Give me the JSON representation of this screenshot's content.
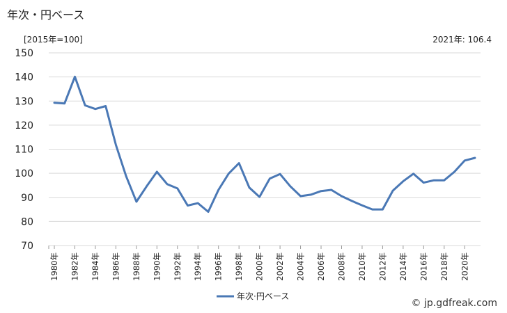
{
  "header": {
    "title": "年次・円ベース",
    "unit_label": "[2015年=100]",
    "latest_label": "2021年: 106.4"
  },
  "credit": "© jp.gdfreak.com",
  "colors": {
    "line": "#4a78b5",
    "grid": "#d9d9d9"
  },
  "chart_data": {
    "type": "line",
    "ylim": [
      70,
      150
    ],
    "yticks": [
      70,
      80,
      90,
      100,
      110,
      120,
      130,
      140,
      150
    ],
    "grid": true,
    "legend_position": "bottom-center",
    "x": [
      1980,
      1981,
      1982,
      1983,
      1984,
      1985,
      1986,
      1987,
      1988,
      1989,
      1990,
      1991,
      1992,
      1993,
      1994,
      1995,
      1996,
      1997,
      1998,
      1999,
      2000,
      2001,
      2002,
      2003,
      2004,
      2005,
      2006,
      2007,
      2008,
      2009,
      2010,
      2011,
      2012,
      2013,
      2014,
      2015,
      2016,
      2017,
      2018,
      2019,
      2020,
      2021
    ],
    "xtick_labels": [
      "1980年",
      "1982年",
      "1984年",
      "1986年",
      "1988年",
      "1990年",
      "1992年",
      "1994年",
      "1996年",
      "1998年",
      "2000年",
      "2002年",
      "2004年",
      "2006年",
      "2008年",
      "2010年",
      "2012年",
      "2014年",
      "2016年",
      "2018年",
      "2020年"
    ],
    "series": [
      {
        "name": "年次·円ベース",
        "values": [
          129.3,
          129.0,
          140.1,
          128.2,
          126.7,
          127.9,
          111.8,
          98.8,
          88.2,
          94.6,
          100.6,
          95.5,
          93.7,
          86.6,
          87.6,
          84.0,
          93.1,
          99.9,
          104.2,
          94.1,
          90.2,
          97.8,
          99.7,
          94.6,
          90.5,
          91.1,
          92.6,
          93.1,
          90.5,
          88.5,
          86.7,
          85.0,
          85.0,
          92.8,
          96.7,
          99.8,
          96.1,
          97.1,
          97.1,
          100.6,
          105.3,
          106.4
        ]
      }
    ]
  }
}
